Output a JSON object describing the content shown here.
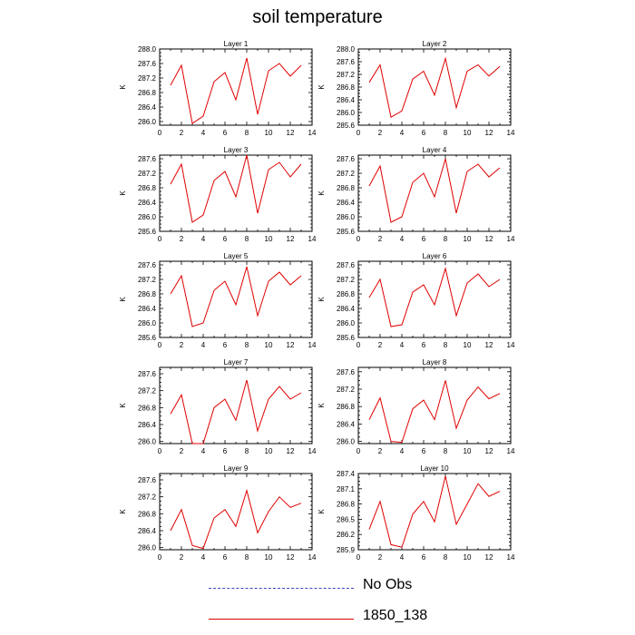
{
  "title": "soil temperature",
  "legend": [
    {
      "label": "No Obs",
      "color": "#4040c0",
      "style": "dashed"
    },
    {
      "label": "1850_138",
      "color": "#e00000",
      "style": "solid"
    }
  ],
  "chart_data": [
    {
      "type": "line",
      "title": "Layer 1",
      "ylabel": "K",
      "xlim": [
        0,
        14
      ],
      "ylim": [
        285.9,
        288.0
      ],
      "xticks": [
        0,
        2,
        4,
        6,
        8,
        10,
        12,
        14
      ],
      "yticks": [
        "286.0",
        "286.4",
        "286.8",
        "287.2",
        "287.6",
        "288.0"
      ],
      "x": [
        1,
        2,
        3,
        4,
        5,
        6,
        7,
        8,
        9,
        10,
        11,
        12,
        13
      ],
      "series": [
        {
          "name": "1850_138",
          "color": "#e00000",
          "values": [
            287.0,
            287.55,
            285.95,
            286.15,
            287.1,
            287.35,
            286.6,
            287.75,
            286.2,
            287.4,
            287.6,
            287.25,
            287.55
          ]
        }
      ]
    },
    {
      "type": "line",
      "title": "Layer 2",
      "ylabel": "K",
      "xlim": [
        0,
        14
      ],
      "ylim": [
        285.6,
        288.0
      ],
      "xticks": [
        0,
        2,
        4,
        6,
        8,
        10,
        12,
        14
      ],
      "yticks": [
        "285.6",
        "286.0",
        "286.4",
        "286.8",
        "287.2",
        "287.6",
        "288.0"
      ],
      "x": [
        1,
        2,
        3,
        4,
        5,
        6,
        7,
        8,
        9,
        10,
        11,
        12,
        13
      ],
      "series": [
        {
          "name": "1850_138",
          "color": "#e00000",
          "values": [
            286.95,
            287.5,
            285.85,
            286.05,
            287.05,
            287.3,
            286.55,
            287.7,
            286.15,
            287.3,
            287.5,
            287.15,
            287.45
          ]
        }
      ]
    },
    {
      "type": "line",
      "title": "Layer 3",
      "ylabel": "K",
      "xlim": [
        0,
        14
      ],
      "ylim": [
        285.6,
        287.7
      ],
      "xticks": [
        0,
        2,
        4,
        6,
        8,
        10,
        12,
        14
      ],
      "yticks": [
        "285.6",
        "286.0",
        "286.4",
        "286.8",
        "287.2",
        "287.6"
      ],
      "x": [
        1,
        2,
        3,
        4,
        5,
        6,
        7,
        8,
        9,
        10,
        11,
        12,
        13
      ],
      "series": [
        {
          "name": "1850_138",
          "color": "#e00000",
          "values": [
            286.9,
            287.45,
            285.85,
            286.05,
            287.0,
            287.25,
            286.55,
            287.7,
            286.1,
            287.3,
            287.5,
            287.1,
            287.45
          ]
        }
      ]
    },
    {
      "type": "line",
      "title": "Layer 4",
      "ylabel": "K",
      "xlim": [
        0,
        14
      ],
      "ylim": [
        285.6,
        287.7
      ],
      "xticks": [
        0,
        2,
        4,
        6,
        8,
        10,
        12,
        14
      ],
      "yticks": [
        "285.6",
        "286.0",
        "286.4",
        "286.8",
        "287.2",
        "287.6"
      ],
      "x": [
        1,
        2,
        3,
        4,
        5,
        6,
        7,
        8,
        9,
        10,
        11,
        12,
        13
      ],
      "series": [
        {
          "name": "1850_138",
          "color": "#e00000",
          "values": [
            286.85,
            287.4,
            285.85,
            286.0,
            286.95,
            287.2,
            286.55,
            287.6,
            286.1,
            287.25,
            287.45,
            287.1,
            287.35
          ]
        }
      ]
    },
    {
      "type": "line",
      "title": "Layer 5",
      "ylabel": "K",
      "xlim": [
        0,
        14
      ],
      "ylim": [
        285.6,
        287.7
      ],
      "xticks": [
        0,
        2,
        4,
        6,
        8,
        10,
        12,
        14
      ],
      "yticks": [
        "285.6",
        "286.0",
        "286.4",
        "286.8",
        "287.2",
        "287.6"
      ],
      "x": [
        1,
        2,
        3,
        4,
        5,
        6,
        7,
        8,
        9,
        10,
        11,
        12,
        13
      ],
      "series": [
        {
          "name": "1850_138",
          "color": "#e00000",
          "values": [
            286.8,
            287.3,
            285.9,
            286.0,
            286.9,
            287.15,
            286.5,
            287.55,
            286.2,
            287.15,
            287.4,
            287.05,
            287.3
          ]
        }
      ]
    },
    {
      "type": "line",
      "title": "Layer 6",
      "ylabel": "K",
      "xlim": [
        0,
        14
      ],
      "ylim": [
        285.6,
        287.7
      ],
      "xticks": [
        0,
        2,
        4,
        6,
        8,
        10,
        12,
        14
      ],
      "yticks": [
        "285.6",
        "286.0",
        "286.4",
        "286.8",
        "287.2",
        "287.6"
      ],
      "x": [
        1,
        2,
        3,
        4,
        5,
        6,
        7,
        8,
        9,
        10,
        11,
        12,
        13
      ],
      "series": [
        {
          "name": "1850_138",
          "color": "#e00000",
          "values": [
            286.7,
            287.2,
            285.9,
            285.95,
            286.85,
            287.05,
            286.5,
            287.5,
            286.2,
            287.1,
            287.35,
            287.0,
            287.2
          ]
        }
      ]
    },
    {
      "type": "line",
      "title": "Layer 7",
      "ylabel": "K",
      "xlim": [
        0,
        14
      ],
      "ylim": [
        285.95,
        287.75
      ],
      "xticks": [
        0,
        2,
        4,
        6,
        8,
        10,
        12,
        14
      ],
      "yticks": [
        "286.0",
        "286.4",
        "286.8",
        "287.2",
        "287.6"
      ],
      "x": [
        1,
        2,
        3,
        4,
        5,
        6,
        7,
        8,
        9,
        10,
        11,
        12,
        13
      ],
      "series": [
        {
          "name": "1850_138",
          "color": "#e00000",
          "values": [
            286.65,
            287.1,
            285.95,
            285.95,
            286.8,
            287.0,
            286.5,
            287.45,
            286.25,
            287.0,
            287.3,
            287.0,
            287.15
          ]
        }
      ]
    },
    {
      "type": "line",
      "title": "Layer 8",
      "ylabel": "K",
      "xlim": [
        0,
        14
      ],
      "ylim": [
        285.95,
        287.7
      ],
      "xticks": [
        0,
        2,
        4,
        6,
        8,
        10,
        12,
        14
      ],
      "yticks": [
        "286.0",
        "286.4",
        "286.8",
        "287.2",
        "287.6"
      ],
      "x": [
        1,
        2,
        3,
        4,
        5,
        6,
        7,
        8,
        9,
        10,
        11,
        12,
        13
      ],
      "series": [
        {
          "name": "1850_138",
          "color": "#e00000",
          "values": [
            286.5,
            287.0,
            286.0,
            285.98,
            286.75,
            286.95,
            286.5,
            287.4,
            286.3,
            286.95,
            287.25,
            286.98,
            287.1
          ]
        }
      ]
    },
    {
      "type": "line",
      "title": "Layer 9",
      "ylabel": "K",
      "xlim": [
        0,
        14
      ],
      "ylim": [
        285.95,
        287.75
      ],
      "xticks": [
        0,
        2,
        4,
        6,
        8,
        10,
        12,
        14
      ],
      "yticks": [
        "286.0",
        "286.4",
        "286.8",
        "287.2",
        "287.6"
      ],
      "x": [
        1,
        2,
        3,
        4,
        5,
        6,
        7,
        8,
        9,
        10,
        11,
        12,
        13
      ],
      "series": [
        {
          "name": "1850_138",
          "color": "#e00000",
          "values": [
            286.4,
            286.9,
            286.05,
            285.98,
            286.7,
            286.9,
            286.5,
            287.35,
            286.35,
            286.85,
            287.2,
            286.95,
            287.05
          ]
        }
      ]
    },
    {
      "type": "line",
      "title": "Layer 10",
      "ylabel": "K",
      "xlim": [
        0,
        14
      ],
      "ylim": [
        285.9,
        287.4
      ],
      "xticks": [
        0,
        2,
        4,
        6,
        8,
        10,
        12,
        14
      ],
      "yticks": [
        "285.9",
        "286.2",
        "286.5",
        "286.8",
        "287.1",
        "287.4"
      ],
      "x": [
        1,
        2,
        3,
        4,
        5,
        6,
        7,
        8,
        9,
        10,
        11,
        12,
        13
      ],
      "series": [
        {
          "name": "1850_138",
          "color": "#e00000",
          "values": [
            286.3,
            286.85,
            286.0,
            285.95,
            286.6,
            286.85,
            286.45,
            287.35,
            286.4,
            286.8,
            287.2,
            286.95,
            287.05
          ]
        }
      ]
    }
  ]
}
